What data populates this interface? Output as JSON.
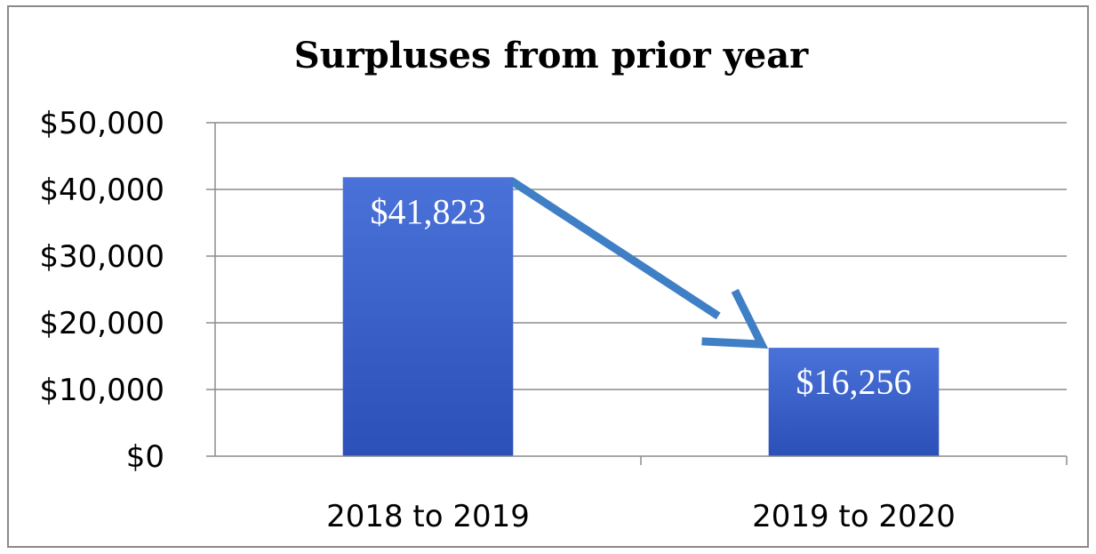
{
  "chart_data": {
    "type": "bar",
    "title": "Surpluses from prior year",
    "categories": [
      "2018 to 2019",
      "2019 to 2020"
    ],
    "values": [
      41823,
      16256
    ],
    "data_labels": [
      "$41,823",
      "$16,256"
    ],
    "y_ticks": [
      "$0",
      "$10,000",
      "$20,000",
      "$30,000",
      "$40,000",
      "$50,000"
    ],
    "ylim": [
      0,
      50000
    ],
    "grid": true,
    "legend": "none",
    "annotation": "arrow from first bar to second bar",
    "colors": {
      "bar_top": "#4a72d8",
      "bar_bottom": "#2b50b8",
      "arrow": "#3f7fc6",
      "grid": "#8c8c8c"
    }
  }
}
